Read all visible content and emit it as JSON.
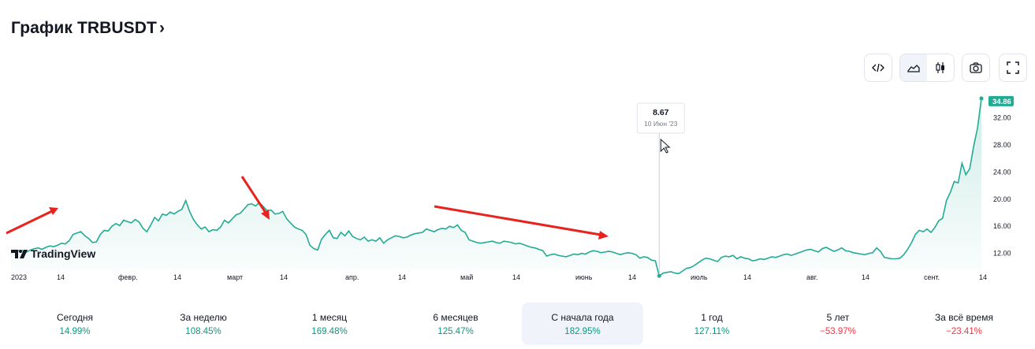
{
  "header": {
    "title": "График TRBUSDT",
    "chevron": "›"
  },
  "toolbar": {
    "buttons": [
      "embed-code-icon",
      "area-chart-icon",
      "candlestick-icon",
      "camera-icon",
      "fullscreen-icon"
    ],
    "active": "area-chart-icon"
  },
  "chart_data": {
    "type": "area",
    "x_labels": [
      "2023",
      "14",
      "февр.",
      "14",
      "март",
      "14",
      "апр.",
      "14",
      "май",
      "14",
      "июнь",
      "14",
      "июль",
      "14",
      "авг.",
      "14",
      "сент.",
      "14"
    ],
    "y_ticks": [
      "32.00",
      "28.00",
      "24.00",
      "20.00",
      "16.00",
      "12.00"
    ],
    "y_tick_values": [
      32,
      28,
      24,
      20,
      16,
      12
    ],
    "ylim": [
      9.4,
      35.2
    ],
    "last_price": "34.86",
    "last_value": 34.86,
    "tooltip": {
      "value": "8.67",
      "date": "10 Июн '23"
    },
    "values": [
      12.1,
      12.3,
      12.4,
      12.4,
      12.2,
      12.5,
      12.7,
      12.8,
      12.6,
      12.9,
      13.1,
      13.0,
      13.2,
      13.5,
      13.4,
      13.9,
      14.8,
      15.0,
      15.2,
      14.6,
      14.2,
      13.6,
      13.7,
      14.8,
      15.4,
      15.3,
      16.0,
      16.4,
      16.1,
      16.9,
      16.7,
      16.5,
      17.0,
      16.6,
      15.7,
      15.2,
      16.2,
      17.3,
      16.8,
      17.8,
      17.6,
      18.1,
      17.8,
      18.2,
      18.5,
      19.8,
      18.2,
      17.0,
      16.2,
      15.6,
      15.9,
      15.2,
      15.5,
      15.4,
      15.9,
      16.9,
      16.5,
      17.1,
      17.7,
      17.9,
      18.5,
      19.2,
      19.3,
      19.0,
      19.5,
      18.9,
      18.3,
      18.4,
      17.8,
      17.9,
      18.2,
      17.1,
      16.5,
      15.9,
      15.6,
      15.4,
      14.8,
      13.2,
      12.7,
      12.5,
      14.1,
      14.8,
      15.4,
      14.3,
      14.2,
      15.1,
      14.6,
      15.3,
      14.5,
      14.2,
      14.0,
      14.4,
      13.8,
      14.0,
      13.8,
      14.3,
      13.5,
      14.0,
      14.3,
      14.6,
      14.5,
      14.3,
      14.4,
      14.7,
      14.9,
      15.0,
      15.1,
      15.6,
      15.4,
      15.2,
      15.5,
      15.7,
      15.6,
      16.0,
      15.8,
      16.2,
      15.4,
      15.1,
      14.0,
      13.8,
      13.6,
      13.5,
      13.6,
      13.7,
      13.8,
      13.6,
      13.5,
      13.8,
      13.7,
      13.6,
      13.4,
      13.5,
      13.3,
      13.1,
      12.9,
      12.8,
      12.6,
      12.4,
      11.6,
      11.8,
      11.9,
      11.7,
      11.6,
      11.5,
      11.7,
      11.9,
      11.8,
      12.0,
      11.9,
      12.2,
      12.4,
      12.3,
      12.1,
      12.2,
      12.3,
      12.2,
      12.0,
      11.8,
      12.0,
      12.1,
      12.0,
      11.8,
      11.3,
      11.5,
      11.4,
      11.0,
      10.9,
      8.67,
      9.1,
      9.2,
      9.3,
      9.1,
      9.0,
      9.4,
      9.8,
      9.9,
      10.2,
      10.6,
      11.0,
      11.3,
      11.2,
      11.0,
      10.8,
      11.4,
      11.6,
      11.5,
      11.7,
      11.2,
      11.5,
      11.3,
      11.2,
      10.9,
      11.0,
      11.2,
      11.1,
      11.3,
      11.5,
      11.4,
      11.6,
      11.8,
      11.9,
      11.7,
      11.9,
      12.1,
      12.3,
      12.5,
      12.6,
      12.4,
      12.2,
      12.7,
      12.9,
      12.6,
      12.3,
      12.5,
      12.8,
      12.4,
      12.3,
      12.1,
      12.0,
      11.9,
      11.8,
      12.0,
      12.1,
      12.8,
      12.3,
      11.4,
      11.3,
      11.2,
      11.2,
      11.3,
      11.8,
      12.6,
      13.6,
      14.8,
      15.4,
      15.2,
      15.6,
      15.1,
      15.8,
      16.8,
      17.2,
      19.8,
      21.0,
      22.6,
      22.4,
      25.3,
      23.6,
      24.5,
      27.8,
      30.5,
      34.86
    ]
  },
  "stats": [
    {
      "label": "Сегодня",
      "value": "14.99%",
      "tone": "pos"
    },
    {
      "label": "За неделю",
      "value": "108.45%",
      "tone": "pos"
    },
    {
      "label": "1 месяц",
      "value": "169.48%",
      "tone": "pos"
    },
    {
      "label": "6 месяцев",
      "value": "125.47%",
      "tone": "pos"
    },
    {
      "label": "С начала года",
      "value": "182.95%",
      "tone": "pos",
      "active": true
    },
    {
      "label": "1 год",
      "value": "127.11%",
      "tone": "pos"
    },
    {
      "label": "5 лет",
      "value": "−53.97%",
      "tone": "neg"
    },
    {
      "label": "За всё время",
      "value": "−23.41%",
      "tone": "neg"
    }
  ],
  "watermark": "TradingView",
  "colors": {
    "line": "#22ab94",
    "accent_up": "#089981",
    "accent_down": "#f23645",
    "annotation": "#e8231f"
  }
}
